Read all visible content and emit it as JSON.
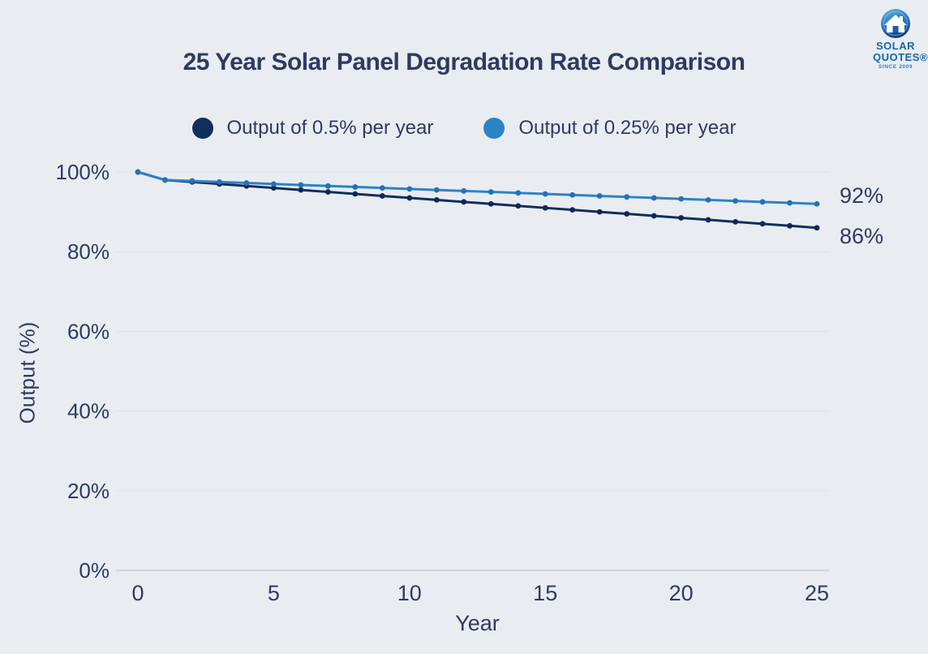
{
  "header": {
    "title": "25 Year Solar Panel Degradation Rate Comparison",
    "logo": {
      "line1": "SOLAR",
      "line2": "QUOTES®",
      "line3": "SINCE 2009"
    }
  },
  "chart_data": {
    "type": "line",
    "title": "25 Year Solar Panel Degradation Rate Comparison",
    "xlabel": "Year",
    "ylabel": "Output (%)",
    "x": [
      0,
      1,
      2,
      3,
      4,
      5,
      6,
      7,
      8,
      9,
      10,
      11,
      12,
      13,
      14,
      15,
      16,
      17,
      18,
      19,
      20,
      21,
      22,
      23,
      24,
      25
    ],
    "xticks": [
      0,
      5,
      10,
      15,
      20,
      25
    ],
    "yticks": [
      0,
      20,
      40,
      60,
      80,
      100
    ],
    "ytick_suffix": "%",
    "ylim": [
      0,
      100
    ],
    "grid": "horizontal",
    "legend_position": "top-center",
    "series": [
      {
        "name": "Output of 0.5% per year",
        "color": "#112e5d",
        "marker_color": "#0d2952",
        "end_label": "86%",
        "values": [
          100,
          98,
          97.5,
          97,
          96.5,
          96,
          95.5,
          95,
          94.5,
          94,
          93.5,
          93,
          92.5,
          92,
          91.5,
          91,
          90.5,
          90,
          89.5,
          89,
          88.5,
          88,
          87.5,
          87,
          86.5,
          86
        ]
      },
      {
        "name": "Output of 0.25% per year",
        "color": "#2e82c6",
        "marker_color": "#2272b8",
        "end_label": "92%",
        "values": [
          100,
          98,
          97.75,
          97.5,
          97.25,
          97,
          96.75,
          96.5,
          96.25,
          96,
          95.75,
          95.5,
          95.25,
          95,
          94.75,
          94.5,
          94.25,
          94,
          93.75,
          93.5,
          93.25,
          93,
          92.75,
          92.5,
          92.25,
          92
        ]
      }
    ],
    "theme": {
      "background": "#e9edf2",
      "text_color": "#2e3a64",
      "grid_color": "#dfe3e8",
      "axis_color": "#c7ccd4"
    }
  }
}
